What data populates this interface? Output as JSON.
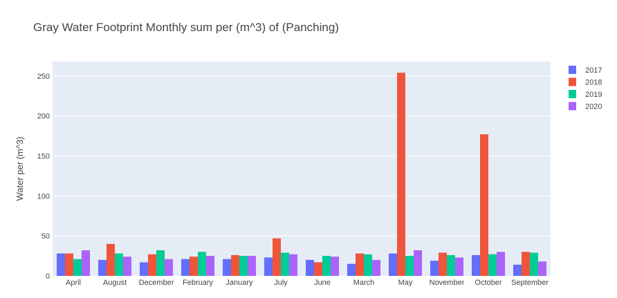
{
  "chart_data": {
    "type": "bar",
    "title": "Gray Water Footprint Monthly sum  per (m^3) of (Panching)",
    "xlabel": "",
    "ylabel": "Water per (m^3)",
    "ylim": [
      0,
      268
    ],
    "yticks": [
      0,
      50,
      100,
      150,
      200,
      250
    ],
    "grid": true,
    "legend_position": "top-right",
    "categories": [
      "April",
      "August",
      "December",
      "February",
      "January",
      "July",
      "June",
      "March",
      "May",
      "November",
      "October",
      "September"
    ],
    "series": [
      {
        "name": "2017",
        "color": "#636efa",
        "values": [
          28,
          20,
          17,
          21,
          21,
          23,
          20,
          15,
          28,
          19,
          26,
          14
        ]
      },
      {
        "name": "2018",
        "color": "#ef553b",
        "values": [
          28,
          40,
          27,
          24,
          26,
          47,
          17,
          28,
          254,
          29,
          177,
          30
        ]
      },
      {
        "name": "2019",
        "color": "#00cc96",
        "values": [
          21,
          28,
          32,
          30,
          25,
          29,
          25,
          27,
          25,
          26,
          27,
          29
        ]
      },
      {
        "name": "2020",
        "color": "#ab63fa",
        "values": [
          32,
          24,
          21,
          25,
          25,
          27,
          24,
          20,
          32,
          23,
          30,
          18
        ]
      }
    ]
  }
}
